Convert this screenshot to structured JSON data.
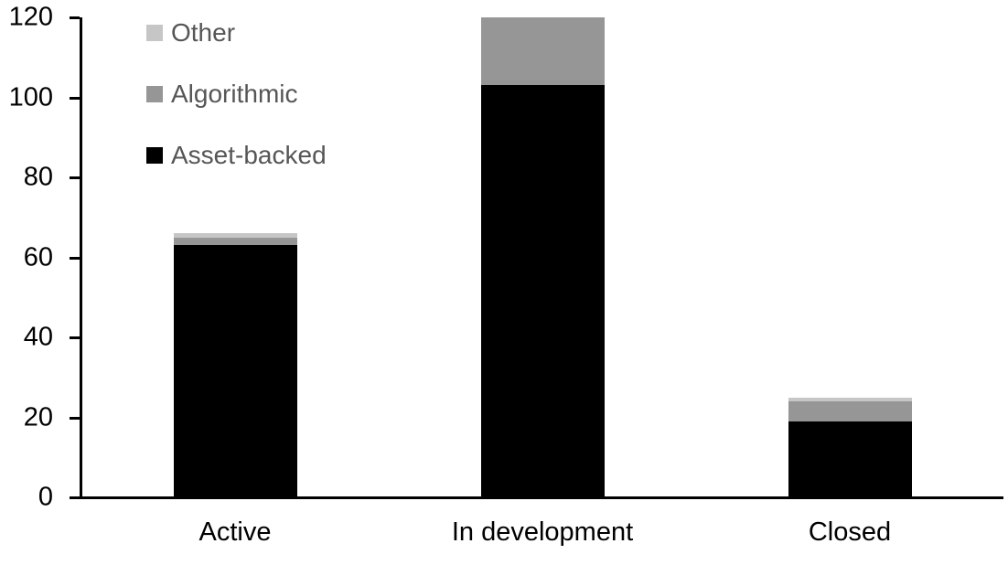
{
  "page": {
    "background": "#ffffff",
    "axis_color": "#000000",
    "legend_text_color": "#565656"
  },
  "chart_data": {
    "type": "bar",
    "stacked": true,
    "title": "",
    "xlabel": "",
    "ylabel": "",
    "categories": [
      "Active",
      "In development",
      "Closed"
    ],
    "series": [
      {
        "name": "Asset-backed",
        "color": "#000000",
        "values": [
          63,
          103,
          19
        ]
      },
      {
        "name": "Algorithmic",
        "color": "#969696",
        "values": [
          2,
          17,
          5
        ]
      },
      {
        "name": "Other",
        "color": "#c6c6c6",
        "values": [
          1,
          0,
          1
        ]
      }
    ],
    "totals": [
      66,
      120,
      25
    ],
    "ylim": [
      0,
      120
    ],
    "yticks": [
      0,
      20,
      40,
      60,
      80,
      100,
      120
    ],
    "grid": false,
    "legend": {
      "position": "top-left-inside",
      "order": [
        "Other",
        "Algorithmic",
        "Asset-backed"
      ]
    }
  }
}
